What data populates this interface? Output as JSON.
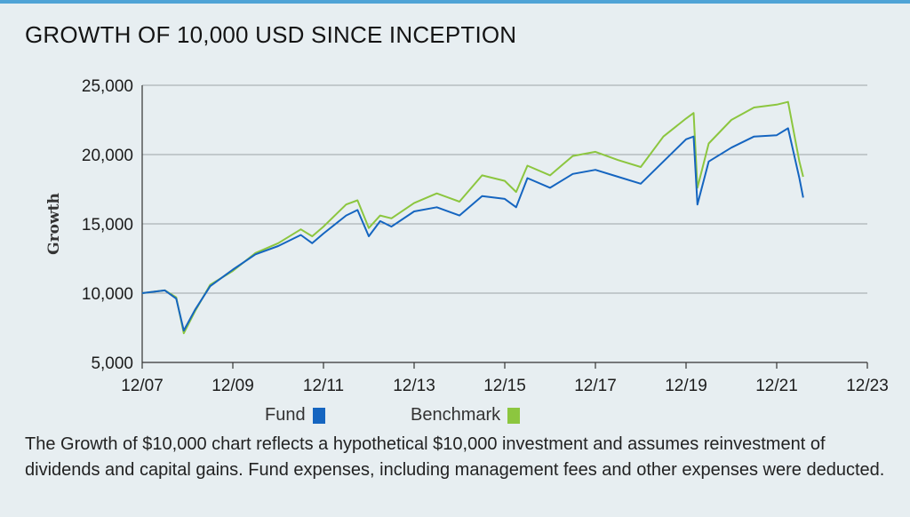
{
  "chart_data": {
    "type": "line",
    "title": "GROWTH OF 10,000 USD SINCE INCEPTION",
    "ylabel": "Growth",
    "xlabel": "",
    "ylim": [
      5000,
      25000
    ],
    "yticks": [
      5000,
      10000,
      15000,
      20000,
      25000
    ],
    "ytick_labels": [
      "5,000",
      "10,000",
      "15,000",
      "20,000",
      "25,000"
    ],
    "xlim": [
      "2007-12",
      "2023-12"
    ],
    "xtick_labels": [
      "12/07",
      "12/09",
      "12/11",
      "12/13",
      "12/15",
      "12/17",
      "12/19",
      "12/21",
      "12/23"
    ],
    "grid": true,
    "legend_position": "bottom",
    "x": [
      "2007-12",
      "2008-06",
      "2008-09",
      "2008-11",
      "2009-02",
      "2009-06",
      "2009-12",
      "2010-06",
      "2010-12",
      "2011-06",
      "2011-09",
      "2011-12",
      "2012-06",
      "2012-09",
      "2012-12",
      "2013-03",
      "2013-06",
      "2013-12",
      "2014-06",
      "2014-12",
      "2015-06",
      "2015-12",
      "2016-03",
      "2016-06",
      "2016-12",
      "2017-06",
      "2017-12",
      "2018-06",
      "2018-12",
      "2019-06",
      "2019-12",
      "2020-02",
      "2020-03",
      "2020-06",
      "2020-12",
      "2021-06",
      "2021-12",
      "2022-03",
      "2022-06",
      "2022-07"
    ],
    "series": [
      {
        "name": "Fund",
        "color": "#1565c0",
        "values": [
          10000,
          10200,
          9600,
          7300,
          8800,
          10500,
          11700,
          12800,
          13400,
          14200,
          13600,
          14300,
          15600,
          16000,
          14100,
          15200,
          14800,
          15900,
          16200,
          15600,
          17000,
          16800,
          16200,
          18300,
          17600,
          18600,
          18900,
          18400,
          17900,
          19500,
          21100,
          21300,
          16400,
          19500,
          20500,
          21300,
          21400,
          21900,
          18300,
          16900
        ]
      },
      {
        "name": "Benchmark",
        "color": "#8cc63f",
        "values": [
          10000,
          10200,
          9700,
          7100,
          8700,
          10600,
          11600,
          12900,
          13600,
          14600,
          14100,
          14800,
          16400,
          16700,
          14700,
          15600,
          15400,
          16500,
          17200,
          16600,
          18500,
          18100,
          17300,
          19200,
          18500,
          19900,
          20200,
          19600,
          19100,
          21300,
          22600,
          23000,
          17600,
          20800,
          22500,
          23400,
          23600,
          23800,
          19500,
          18400
        ]
      }
    ]
  },
  "legend": {
    "fund_label": "Fund",
    "benchmark_label": "Benchmark",
    "fund_color": "#1565c0",
    "benchmark_color": "#8cc63f"
  },
  "footnote": "The Growth of $10,000 chart reflects a hypothetical $10,000 investment and assumes reinvestment of dividends and capital gains. Fund expenses, including management fees and other expenses were deducted."
}
